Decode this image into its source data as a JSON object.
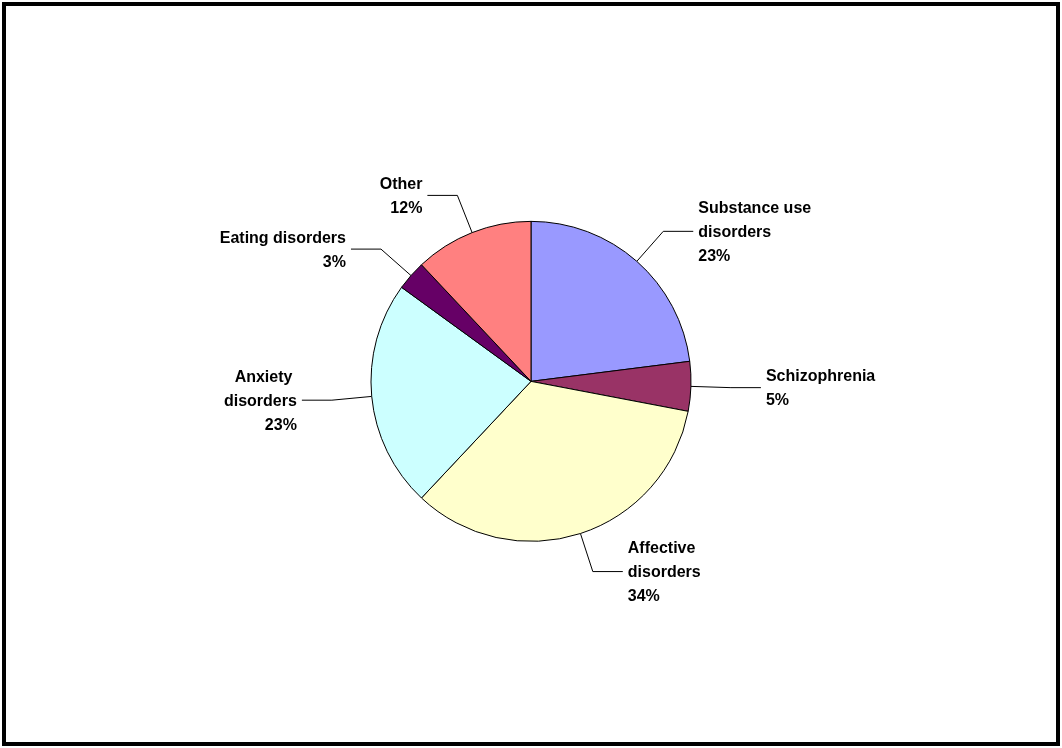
{
  "chart_data": {
    "type": "pie",
    "categories": [
      "Substance use disorders",
      "Schizophrenia",
      "Affective disorders",
      "Anxiety disorders",
      "Eating disorders",
      "Other"
    ],
    "values": [
      23,
      5,
      34,
      23,
      3,
      12
    ],
    "colors": [
      "#9999ff",
      "#993366",
      "#ffffcc",
      "#ccffff",
      "#660066",
      "#ff8080"
    ],
    "value_labels": [
      "23%",
      "5%",
      "34%",
      "23%",
      "3%",
      "12%"
    ],
    "legend": false
  }
}
